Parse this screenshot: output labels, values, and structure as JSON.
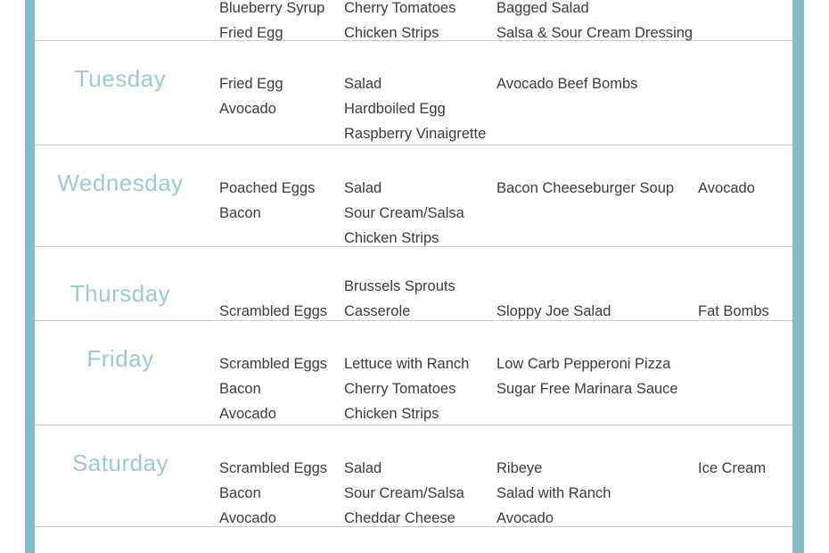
{
  "colors": {
    "accent_bar": "#85bdc7",
    "day_label": "#9acbd1",
    "divider": "#c9cacb",
    "text": "#3b3b3b"
  },
  "rows": [
    {
      "day": "",
      "breakfast": [
        "Blueberry Syrup",
        "Fried Egg"
      ],
      "lunch": [
        "Cherry Tomatoes",
        "Chicken Strips"
      ],
      "dinner": [
        "Bagged Salad",
        "Salsa & Sour Cream Dressing"
      ],
      "snack": []
    },
    {
      "day": "Tuesday",
      "breakfast": [
        "Fried Egg",
        "Avocado"
      ],
      "lunch": [
        "Salad",
        "Hardboiled Egg",
        "Raspberry Vinaigrette"
      ],
      "dinner": [
        "Avocado Beef Bombs"
      ],
      "snack": []
    },
    {
      "day": "Wednesday",
      "breakfast": [
        "Poached Eggs",
        "Bacon"
      ],
      "lunch": [
        "Salad",
        "Sour Cream/Salsa",
        "Chicken Strips"
      ],
      "dinner": [
        "Bacon Cheeseburger Soup"
      ],
      "snack": [
        "Avocado"
      ]
    },
    {
      "day": "Thursday",
      "breakfast": [
        "Scrambled Eggs"
      ],
      "lunch": [
        "Brussels Sprouts",
        "Casserole"
      ],
      "dinner": [
        "Sloppy Joe Salad"
      ],
      "snack": [
        "Fat Bombs"
      ]
    },
    {
      "day": "Friday",
      "breakfast": [
        "Scrambled Eggs",
        "Bacon",
        "Avocado"
      ],
      "lunch": [
        "Lettuce with Ranch",
        "Cherry Tomatoes",
        "Chicken Strips"
      ],
      "dinner": [
        "Low Carb Pepperoni Pizza",
        "Sugar Free Marinara Sauce"
      ],
      "snack": []
    },
    {
      "day": "Saturday",
      "breakfast": [
        "Scrambled Eggs",
        "Bacon",
        "Avocado"
      ],
      "lunch": [
        "Salad",
        "Sour Cream/Salsa",
        "Cheddar Cheese"
      ],
      "dinner": [
        "Ribeye",
        "Salad with Ranch",
        "Avocado"
      ],
      "snack": [
        "Ice Cream"
      ]
    }
  ]
}
